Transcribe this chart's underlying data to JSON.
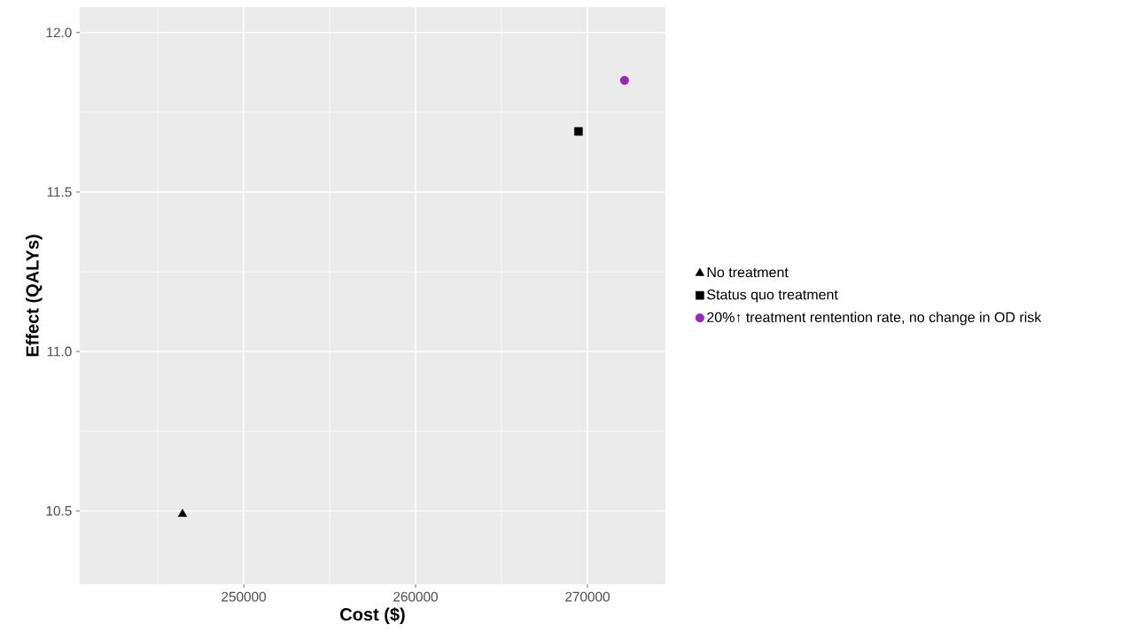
{
  "chart_data": {
    "type": "scatter",
    "xlabel": "Cost ($)",
    "ylabel": "Effect (QALYs)",
    "series": [
      {
        "name": "No treatment",
        "color": "#000000",
        "marker": "triangle",
        "x": [
          246440
        ],
        "values": [
          10.49
        ]
      },
      {
        "name": "Status quo treatment",
        "color": "#000000",
        "marker": "square",
        "x": [
          269480
        ],
        "values": [
          11.69
        ]
      },
      {
        "name": "20%↑ treatment rentention rate, no change in OD risk",
        "color": "#9627ba",
        "marker": "circle",
        "x": [
          272160
        ],
        "values": [
          11.85
        ]
      }
    ],
    "xlim": [
      240460,
      274540
    ],
    "ylim": [
      10.27,
      12.08
    ],
    "xticks": [
      250000,
      260000,
      270000
    ],
    "yticks": [
      10.5,
      {
        "value": 11,
        "label": "11.0"
      },
      11.5,
      {
        "value": 12,
        "label": "12.0"
      }
    ],
    "grid": true,
    "legend": "right"
  }
}
